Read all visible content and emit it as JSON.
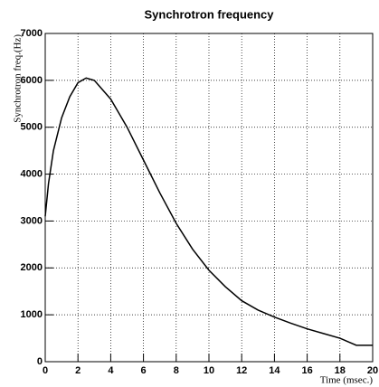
{
  "chart_data": {
    "type": "line",
    "title": "Synchrotron frequency",
    "x_label": "Time (msec.)",
    "y_label": "Synchrotron freq.(Hz)",
    "x": [
      0,
      0.2,
      0.5,
      1,
      1.5,
      2,
      2.5,
      3,
      4,
      5,
      6,
      7,
      8,
      9,
      10,
      11,
      12,
      13,
      14,
      15,
      16,
      17,
      18,
      19,
      20
    ],
    "series": [
      {
        "name": "Synchrotron frequency",
        "color": "#000000",
        "values": [
          3100,
          3800,
          4500,
          5200,
          5650,
          5950,
          6050,
          6000,
          5600,
          5000,
          4300,
          3600,
          2950,
          2400,
          1950,
          1600,
          1300,
          1100,
          950,
          820,
          700,
          600,
          500,
          350,
          350
        ]
      }
    ],
    "xlim": [
      0,
      20
    ],
    "xticks": [
      0,
      2,
      4,
      6,
      8,
      10,
      12,
      14,
      16,
      18,
      20
    ],
    "ylim": [
      0,
      7000
    ],
    "yticks": [
      0,
      1000,
      2000,
      3000,
      4000,
      5000,
      6000,
      7000
    ],
    "grid": true
  }
}
